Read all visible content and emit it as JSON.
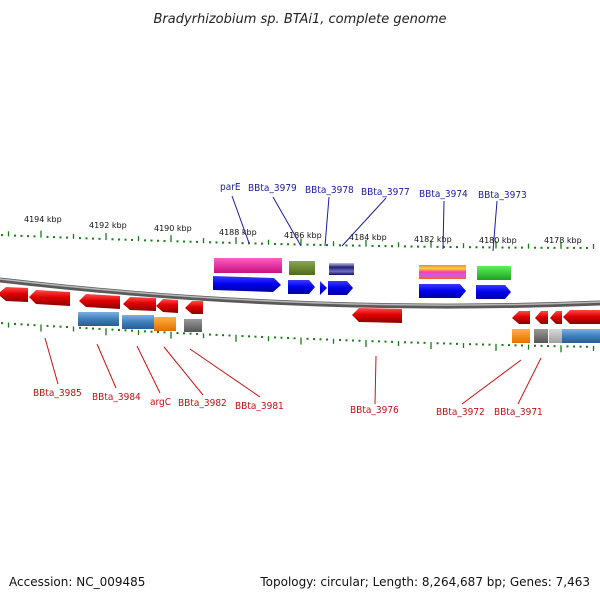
{
  "title": "Bradyrhizobium sp. BTAi1, complete genome",
  "footer": {
    "accession": "Accession: NC_009485",
    "topology": "Topology: circular; Length: 8,264,687 bp; Genes: 7,463"
  },
  "kbp_labels": [
    "4194 kbp",
    "4192 kbp",
    "4190 kbp",
    "4188 kbp",
    "4186 kbp",
    "4184 kbp",
    "4182 kbp",
    "4180 kbp",
    "4178 kbp"
  ],
  "top_gene_labels": [
    "parE",
    "BBta_3979",
    "BBta_3978",
    "BBta_3977",
    "BBta_3974",
    "BBta_3973"
  ],
  "bottom_gene_labels": [
    "BBta_3985",
    "BBta_3984",
    "argC",
    "BBta_3982",
    "BBta_3981",
    "BBta_3976",
    "BBta_3972",
    "BBta_3971"
  ],
  "colors": {
    "forward_strand": "#0a0af0",
    "reverse_strand": "#e00000",
    "tick": "#1a7a1a",
    "backbone": "#888888",
    "label_top": "#1a1aa6",
    "label_bottom": "#c01010"
  }
}
